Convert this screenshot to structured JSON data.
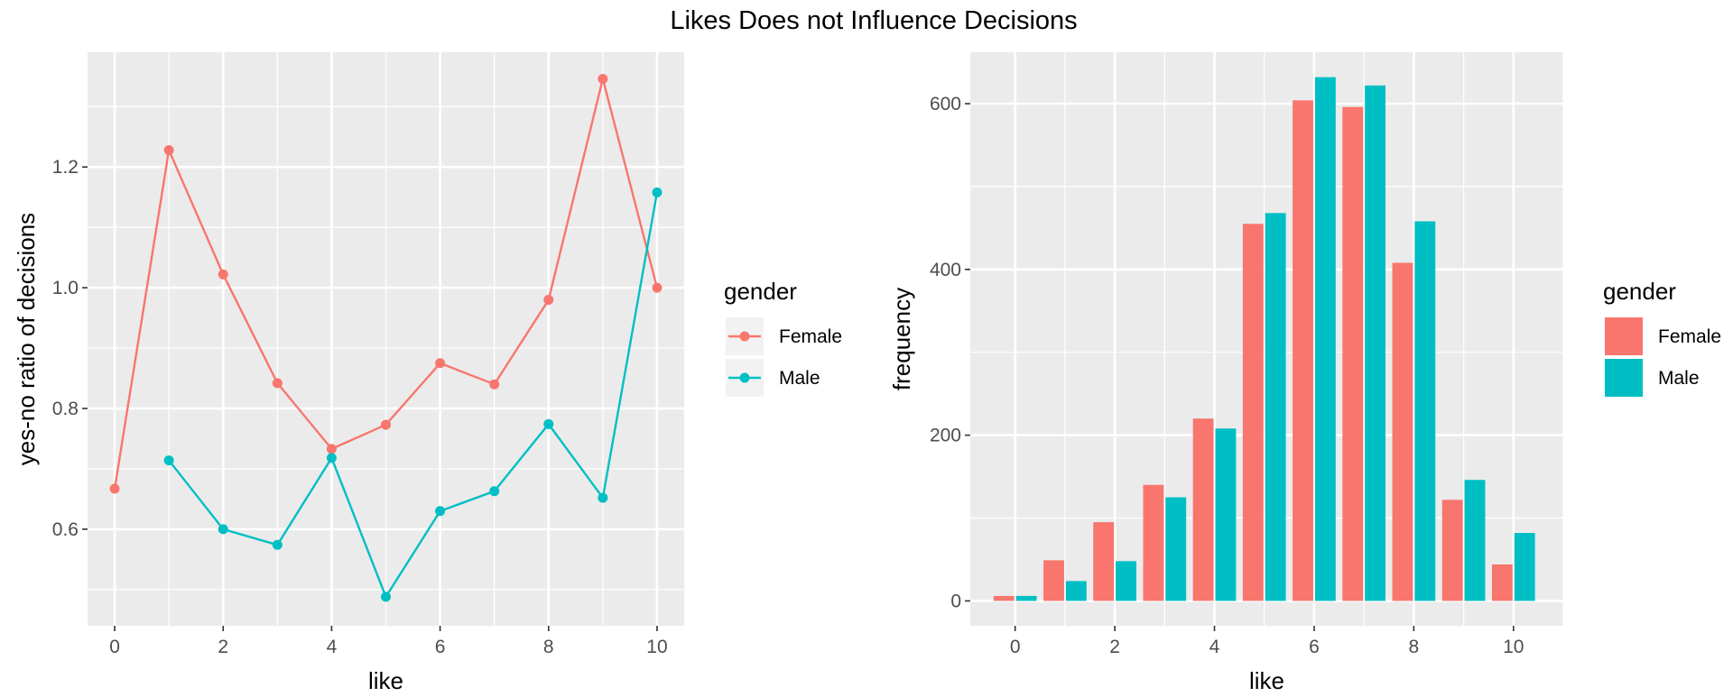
{
  "title": "Likes Does not Influence Decisions",
  "colors": {
    "female": "#F8766D",
    "male": "#00BFC4",
    "panel": "#EBEBEB",
    "grid": "#FFFFFF"
  },
  "chart_data": [
    {
      "type": "line",
      "xlabel": "like",
      "ylabel": "yes-no ratio of decisions",
      "xlim": [
        -0.5,
        10.5
      ],
      "ylim": [
        0.44,
        1.39
      ],
      "xticks": [
        0,
        2,
        4,
        6,
        8,
        10
      ],
      "yticks": [
        0.6,
        0.8,
        1.0,
        1.2
      ],
      "ytick_labels": [
        "0.6",
        "0.8",
        "1.0",
        "1.2"
      ],
      "grid": true,
      "legend": {
        "title": "gender",
        "position": "right",
        "marker": "point-line"
      },
      "series": [
        {
          "name": "Female",
          "color": "#F8766D",
          "x": [
            0,
            1,
            2,
            3,
            4,
            5,
            6,
            7,
            8,
            9,
            10
          ],
          "values": [
            0.667,
            1.228,
            1.022,
            0.842,
            0.733,
            0.773,
            0.875,
            0.84,
            0.98,
            1.346,
            1.0
          ]
        },
        {
          "name": "Male",
          "color": "#00BFC4",
          "x": [
            1,
            2,
            3,
            4,
            5,
            6,
            7,
            8,
            9,
            10
          ],
          "values": [
            0.714,
            0.6,
            0.574,
            0.718,
            0.488,
            0.63,
            0.663,
            0.774,
            0.652,
            1.158
          ]
        }
      ]
    },
    {
      "type": "bar",
      "xlabel": "like",
      "ylabel": "frequency",
      "xlim": [
        -0.9,
        11.0
      ],
      "ylim": [
        -30,
        662
      ],
      "xticks": [
        0,
        2,
        4,
        6,
        8,
        10
      ],
      "yticks": [
        0,
        200,
        400,
        600
      ],
      "grid": true,
      "legend": {
        "title": "gender",
        "position": "right",
        "marker": "box"
      },
      "categories": [
        0,
        1,
        2,
        3,
        4,
        5,
        6,
        7,
        8,
        9,
        10
      ],
      "series": [
        {
          "name": "Female",
          "color": "#F8766D",
          "values": [
            6,
            49,
            95,
            140,
            220,
            455,
            604,
            596,
            408,
            122,
            44
          ]
        },
        {
          "name": "Male",
          "color": "#00BFC4",
          "values": [
            6,
            24,
            48,
            125,
            208,
            468,
            632,
            622,
            458,
            146,
            82
          ]
        }
      ]
    }
  ]
}
